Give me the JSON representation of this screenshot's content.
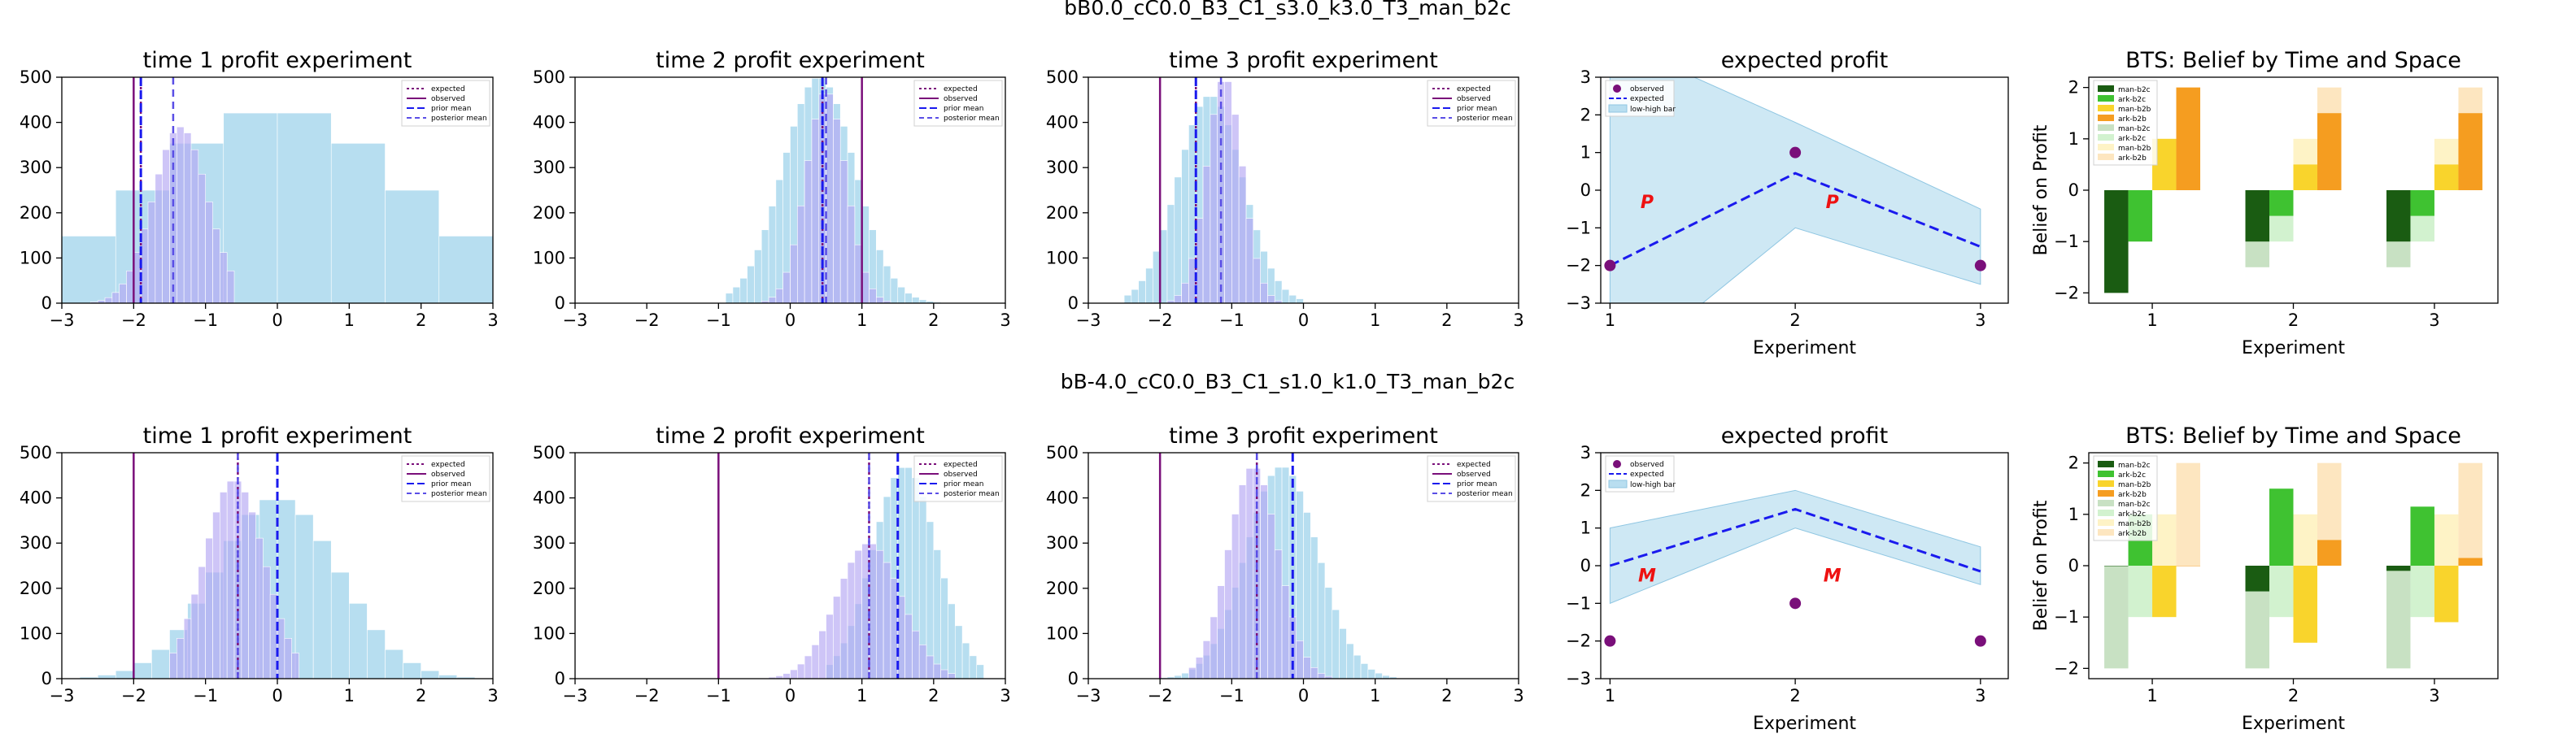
{
  "colors": {
    "hist_light": "#a5d6ec",
    "hist_purple": "#b3a6f2",
    "observed": "#7a0f7a",
    "blue": "#1a1aee",
    "band": "#b9def0",
    "dark_green": "#1a5c12",
    "green": "#3fc231",
    "yellow": "#f9d42c",
    "orange": "#f59d20",
    "pale_green": "#c8e1c3",
    "pale_green2": "#d2f2cf",
    "pale_yellow": "#fef3c6",
    "pale_orange": "#fde6c0",
    "red_marker": "#ee1111"
  },
  "rows": [
    {
      "suptitle": "bB0.0_cC0.0_B3_C1_s3.0_k3.0_T3_man_b2c",
      "marker": "P",
      "hist_titles": [
        "time 1 profit experiment",
        "time 2 profit experiment",
        "time 3 profit experiment"
      ],
      "ep_title": "expected profit",
      "ep_xlabel": "Experiment",
      "ep_legend": [
        "observed",
        "expected",
        "low-high bar"
      ],
      "bts_title": "BTS: Belief by Time and Space",
      "bts_xlabel": "Experiment",
      "bts_ylabel": "Belief on Profit",
      "bts_legend": [
        "man-b2c",
        "ark-b2c",
        "man-b2b",
        "ark-b2b",
        "man-b2c",
        "ark-b2c",
        "man-b2b",
        "ark-b2b"
      ]
    },
    {
      "suptitle": "bB-4.0_cC0.0_B3_C1_s1.0_k1.0_T3_man_b2c",
      "marker": "M",
      "hist_titles": [
        "time 1 profit experiment",
        "time 2 profit experiment",
        "time 3 profit experiment"
      ],
      "ep_title": "expected profit",
      "ep_xlabel": "Experiment",
      "ep_legend": [
        "observed",
        "expected",
        "low-high bar"
      ],
      "bts_title": "BTS: Belief by Time and Space",
      "bts_xlabel": "Experiment",
      "bts_ylabel": "Belief on Profit",
      "bts_legend": [
        "man-b2c",
        "ark-b2c",
        "man-b2b",
        "ark-b2b",
        "man-b2c",
        "ark-b2c",
        "man-b2b",
        "ark-b2b"
      ]
    }
  ],
  "hist_legend": [
    "expected",
    "observed",
    "prior mean",
    "posterior mean"
  ],
  "chart_data": [
    {
      "type": "histogram",
      "title": "time 1 profit experiment",
      "xlim": [
        -3,
        3
      ],
      "ylim": [
        0,
        500
      ],
      "xticks": [
        -3,
        -2,
        -1,
        0,
        1,
        2,
        3
      ],
      "yticks": [
        0,
        100,
        200,
        300,
        400,
        500
      ],
      "light": {
        "mean": 0.0,
        "sd": 1.8,
        "peak": 430,
        "bin": 0.75,
        "from": -3,
        "to": 3
      },
      "purple": {
        "mean": -1.35,
        "sd": 0.38,
        "peak": 390,
        "bin": 0.1,
        "from": -2.6,
        "to": -0.6
      },
      "lines": {
        "expected": -1.9,
        "observed": -2.0,
        "prior_mean": -1.9,
        "posterior_mean": -1.45
      }
    },
    {
      "type": "histogram",
      "title": "time 2 profit experiment",
      "xlim": [
        -3,
        3
      ],
      "ylim": [
        0,
        500
      ],
      "xticks": [
        -3,
        -2,
        -1,
        0,
        1,
        2,
        3
      ],
      "yticks": [
        0,
        100,
        200,
        300,
        400,
        500
      ],
      "light": {
        "mean": 0.4,
        "sd": 0.5,
        "peak": 500,
        "bin": 0.1,
        "from": -0.9,
        "to": 2.3
      },
      "purple": {
        "mean": 0.5,
        "sd": 0.28,
        "peak": 470,
        "bin": 0.1,
        "from": -0.4,
        "to": 1.5
      },
      "lines": {
        "expected": 0.45,
        "observed": 1.0,
        "prior_mean": 0.45,
        "posterior_mean": 0.5
      }
    },
    {
      "type": "histogram",
      "title": "time 3 profit experiment",
      "xlim": [
        -3,
        3
      ],
      "ylim": [
        0,
        500
      ],
      "xticks": [
        -3,
        -2,
        -1,
        0,
        1,
        2,
        3
      ],
      "yticks": [
        0,
        100,
        200,
        300,
        400,
        500
      ],
      "light": {
        "mean": -1.3,
        "sd": 0.45,
        "peak": 460,
        "bin": 0.1,
        "from": -2.5,
        "to": 0.0
      },
      "purple": {
        "mean": -1.1,
        "sd": 0.25,
        "peak": 500,
        "bin": 0.1,
        "from": -1.9,
        "to": -0.3
      },
      "lines": {
        "expected": -1.5,
        "observed": -2.0,
        "prior_mean": -1.5,
        "posterior_mean": -1.15
      }
    },
    {
      "type": "line",
      "title": "expected profit",
      "xlabel": "Experiment",
      "xlim": [
        0.95,
        3.15
      ],
      "ylim": [
        -3,
        3
      ],
      "xticks": [
        1,
        2,
        3
      ],
      "yticks": [
        -3,
        -2,
        -1,
        0,
        1,
        2,
        3
      ],
      "x": [
        1,
        2,
        3
      ],
      "observed": [
        -2,
        1,
        -2
      ],
      "expected": [
        -2,
        0.45,
        -1.5
      ],
      "low": [
        -5,
        -1,
        -2.5
      ],
      "high": [
        4,
        1.8,
        -0.5
      ],
      "marker_y": -0.3
    },
    {
      "type": "bar",
      "title": "BTS: Belief by Time and Space",
      "xlabel": "Experiment",
      "ylabel": "Belief on Profit",
      "xlim": [
        0.55,
        3.45
      ],
      "ylim": [
        -2.2,
        2.2
      ],
      "xticks": [
        1,
        2,
        3
      ],
      "yticks": [
        -2,
        -1,
        0,
        1,
        2
      ],
      "categories": [
        1,
        2,
        3
      ],
      "series": [
        {
          "name": "man-b2c",
          "values": [
            -2.0,
            -1.0,
            -1.0
          ],
          "slot": 0
        },
        {
          "name": "ark-b2c",
          "values": [
            -1.0,
            -0.5,
            -0.5
          ],
          "slot": 1
        },
        {
          "name": "man-b2b",
          "values": [
            1.0,
            0.5,
            0.5
          ],
          "slot": 2
        },
        {
          "name": "ark-b2b",
          "values": [
            2.0,
            1.5,
            1.5
          ],
          "slot": 3
        },
        {
          "name": "man-b2c",
          "values": [
            -2.0,
            -1.5,
            -1.5
          ],
          "slot": 0,
          "pale": true
        },
        {
          "name": "ark-b2c",
          "values": [
            -1.0,
            -1.0,
            -1.0
          ],
          "slot": 1,
          "pale": true
        },
        {
          "name": "man-b2b",
          "values": [
            1.0,
            1.0,
            1.0
          ],
          "slot": 2,
          "pale": true
        },
        {
          "name": "ark-b2b",
          "values": [
            2.0,
            2.0,
            2.0
          ],
          "slot": 3,
          "pale": true
        }
      ]
    },
    {
      "type": "histogram",
      "title": "time 1 profit experiment",
      "xlim": [
        -3,
        3
      ],
      "ylim": [
        0,
        500
      ],
      "xticks": [
        -3,
        -2,
        -1,
        0,
        1,
        2,
        3
      ],
      "yticks": [
        0,
        100,
        200,
        300,
        400,
        500
      ],
      "light": {
        "mean": 0.0,
        "sd": 0.85,
        "peak": 400,
        "bin": 0.25,
        "from": -3,
        "to": 2.8
      },
      "purple": {
        "mean": -0.6,
        "sd": 0.42,
        "peak": 440,
        "bin": 0.1,
        "from": -1.5,
        "to": 0.3
      },
      "lines": {
        "expected": -0.55,
        "observed": -2.0,
        "prior_mean": 0.0,
        "posterior_mean": -0.55
      }
    },
    {
      "type": "histogram",
      "title": "time 2 profit experiment",
      "xlim": [
        -3,
        3
      ],
      "ylim": [
        0,
        500
      ],
      "xticks": [
        -3,
        -2,
        -1,
        0,
        1,
        2,
        3
      ],
      "yticks": [
        0,
        100,
        200,
        300,
        400,
        500
      ],
      "light": {
        "mean": 1.6,
        "sd": 0.45,
        "peak": 470,
        "bin": 0.1,
        "from": 0.5,
        "to": 2.7
      },
      "purple": {
        "mean": 1.1,
        "sd": 0.45,
        "peak": 300,
        "bin": 0.1,
        "from": -0.5,
        "to": 2.3
      },
      "lines": {
        "expected": 1.1,
        "observed": -1.0,
        "prior_mean": 1.5,
        "posterior_mean": 1.1
      }
    },
    {
      "type": "histogram",
      "title": "time 3 profit experiment",
      "xlim": [
        -3,
        3
      ],
      "ylim": [
        0,
        500
      ],
      "xticks": [
        -3,
        -2,
        -1,
        0,
        1,
        2,
        3
      ],
      "yticks": [
        0,
        100,
        200,
        300,
        400,
        500
      ],
      "light": {
        "mean": -0.3,
        "sd": 0.5,
        "peak": 470,
        "bin": 0.1,
        "from": -2.0,
        "to": 1.3
      },
      "purple": {
        "mean": -0.7,
        "sd": 0.35,
        "peak": 470,
        "bin": 0.1,
        "from": -1.6,
        "to": 0.4
      },
      "lines": {
        "expected": -0.65,
        "observed": -2.0,
        "prior_mean": -0.15,
        "posterior_mean": -0.65
      }
    },
    {
      "type": "line",
      "title": "expected profit",
      "xlabel": "Experiment",
      "xlim": [
        0.95,
        3.15
      ],
      "ylim": [
        -3,
        3
      ],
      "xticks": [
        1,
        2,
        3
      ],
      "yticks": [
        -3,
        -2,
        -1,
        0,
        1,
        2,
        3
      ],
      "x": [
        1,
        2,
        3
      ],
      "observed": [
        -2,
        -1,
        -2
      ],
      "expected": [
        0.0,
        1.5,
        -0.15
      ],
      "low": [
        -1,
        1,
        -0.5
      ],
      "high": [
        1,
        2,
        0.5
      ],
      "marker_y": -0.25
    },
    {
      "type": "bar",
      "title": "BTS: Belief by Time and Space",
      "xlabel": "Experiment",
      "ylabel": "Belief on Profit",
      "xlim": [
        0.55,
        3.45
      ],
      "ylim": [
        -2.2,
        2.2
      ],
      "xticks": [
        1,
        2,
        3
      ],
      "yticks": [
        -2,
        -1,
        0,
        1,
        2
      ],
      "categories": [
        1,
        2,
        3
      ],
      "series": [
        {
          "name": "man-b2c",
          "values": [
            0.0,
            -0.5,
            -0.1
          ],
          "slot": 0
        },
        {
          "name": "ark-b2c",
          "values": [
            1.0,
            1.5,
            1.15
          ],
          "slot": 1
        },
        {
          "name": "man-b2b",
          "values": [
            -1.0,
            -1.5,
            -1.1
          ],
          "slot": 2
        },
        {
          "name": "ark-b2b",
          "values": [
            0.0,
            0.5,
            0.15
          ],
          "slot": 3
        },
        {
          "name": "man-b2c",
          "values": [
            -2.0,
            -2.0,
            -2.0
          ],
          "slot": 0,
          "pale": true
        },
        {
          "name": "ark-b2c",
          "values": [
            -1.0,
            -1.0,
            -1.0
          ],
          "slot": 1,
          "pale": true
        },
        {
          "name": "man-b2b",
          "values": [
            1.0,
            1.0,
            1.0
          ],
          "slot": 2,
          "pale": true
        },
        {
          "name": "ark-b2b",
          "values": [
            2.0,
            2.0,
            2.0
          ],
          "slot": 3,
          "pale": true
        }
      ]
    }
  ]
}
